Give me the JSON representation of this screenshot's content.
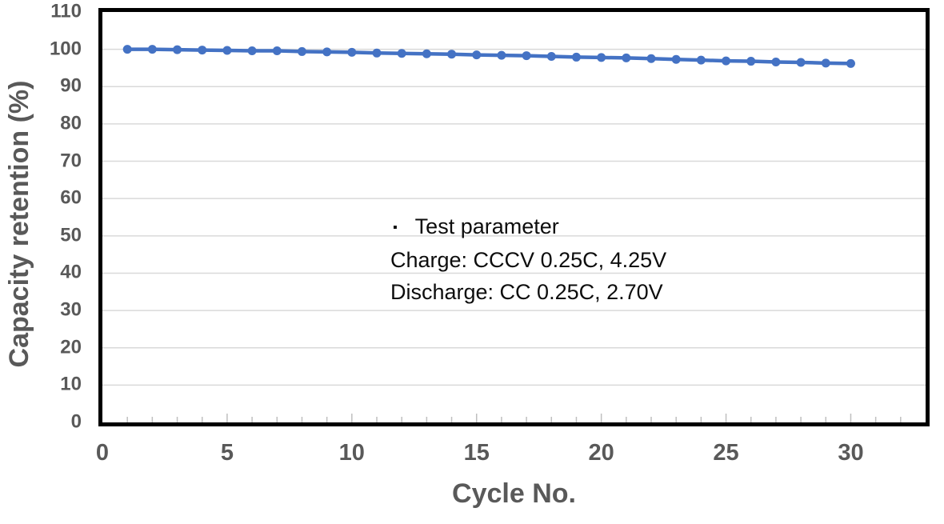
{
  "chart_data": {
    "type": "line",
    "title": "",
    "xlabel": "Cycle No.",
    "ylabel": "Capacity retention (%)",
    "x": [
      1,
      2,
      3,
      4,
      5,
      6,
      7,
      8,
      9,
      10,
      11,
      12,
      13,
      14,
      15,
      16,
      17,
      18,
      19,
      20,
      21,
      22,
      23,
      24,
      25,
      26,
      27,
      28,
      29,
      30
    ],
    "series": [
      {
        "name": "Capacity retention",
        "values": [
          100.0,
          100.0,
          99.9,
          99.8,
          99.7,
          99.6,
          99.6,
          99.4,
          99.3,
          99.2,
          99.0,
          98.9,
          98.8,
          98.7,
          98.5,
          98.4,
          98.3,
          98.1,
          97.9,
          97.8,
          97.7,
          97.5,
          97.3,
          97.1,
          96.9,
          96.8,
          96.6,
          96.5,
          96.3,
          96.2
        ]
      }
    ],
    "xlim": [
      0,
      33
    ],
    "ylim": [
      0,
      110
    ],
    "x_ticks": [
      0,
      5,
      10,
      15,
      20,
      25,
      30
    ],
    "y_ticks": [
      0,
      10,
      20,
      30,
      40,
      50,
      60,
      70,
      80,
      90,
      100,
      110
    ],
    "x_minor_tick_step": 1,
    "grid": "horizontal",
    "legend": "none",
    "annotation": {
      "bullet_icon": "▪",
      "title": "Test parameter",
      "charge": "Charge: CCCV 0.25C, 4.25V",
      "discharge": "Discharge: CC 0.25C, 2.70V"
    },
    "colors": {
      "series": "#4472C4",
      "axis_text": "#595959",
      "gridline": "#D9D9D9",
      "minor_tick": "#BFBFBF",
      "plot_border": "#000000",
      "annotation_text": "#0D0D0D",
      "background": "#FFFFFF"
    }
  }
}
